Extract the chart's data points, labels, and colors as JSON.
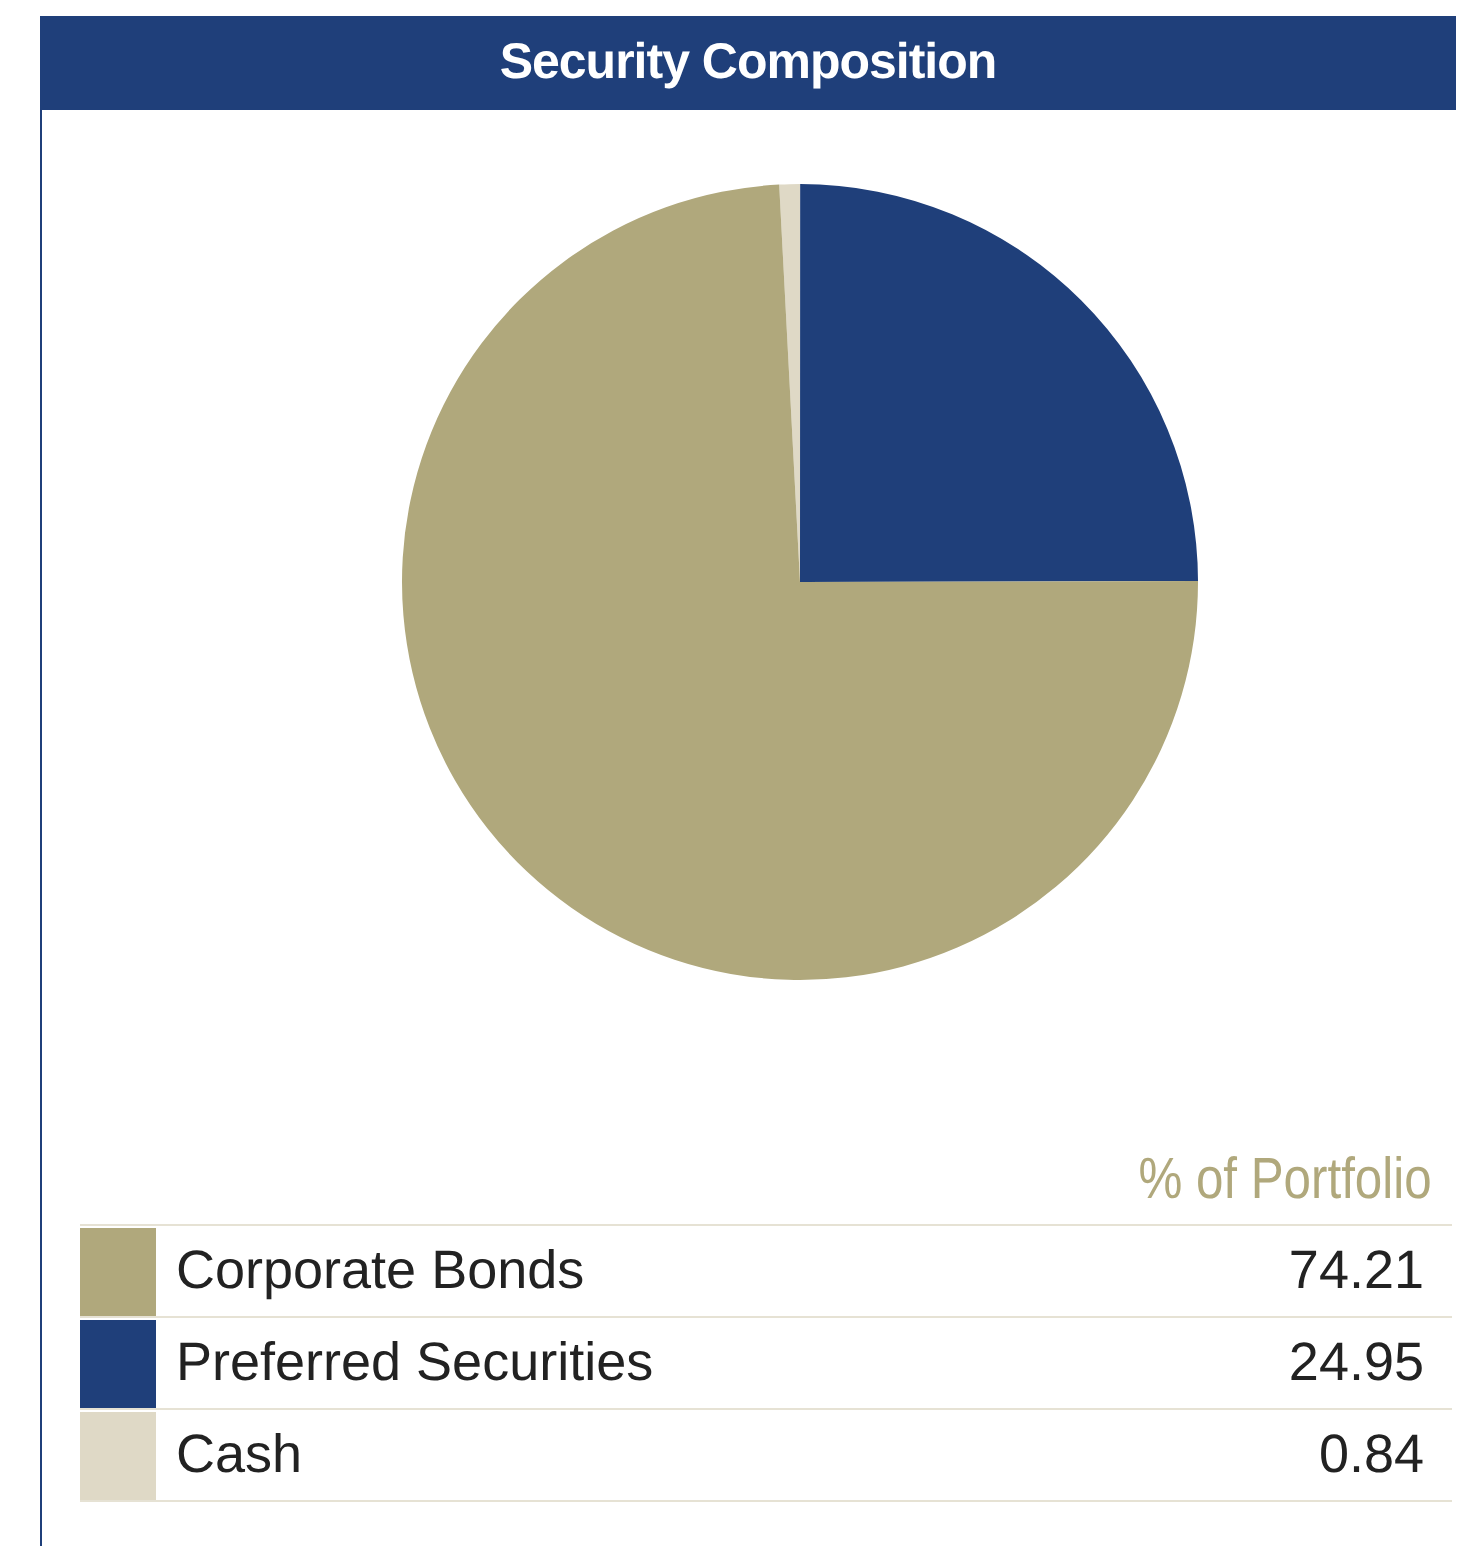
{
  "chart_data": {
    "type": "pie",
    "title": "Security Composition",
    "legend_title": "% of Portfolio",
    "categories": [
      "Corporate Bonds",
      "Preferred Securities",
      "Cash"
    ],
    "values": [
      74.21,
      24.95,
      0.84
    ],
    "colors": [
      "#b0a87c",
      "#1f3f7a",
      "#dfd9c6"
    ],
    "data_labels": true,
    "legend": "bottom"
  }
}
